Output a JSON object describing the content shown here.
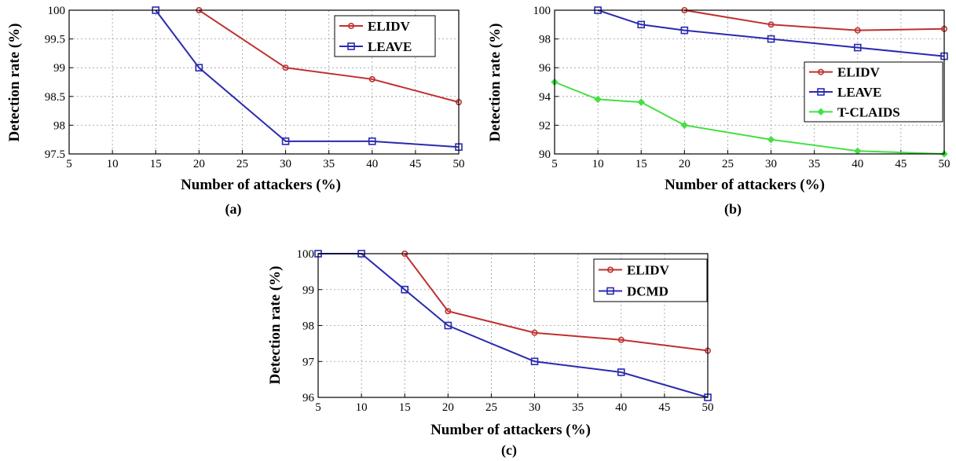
{
  "chart_data": [
    {
      "type": "line",
      "caption": "(a)",
      "xlabel": "Number of attackers (%)",
      "ylabel": "Detection rate (%)",
      "xlim": [
        5,
        50
      ],
      "ylim": [
        97.5,
        100
      ],
      "xticks": [
        "5",
        "10",
        "15",
        "20",
        "25",
        "30",
        "35",
        "40",
        "45",
        "50"
      ],
      "yticks": [
        "97.5",
        "98",
        "98.5",
        "99",
        "99.5",
        "100"
      ],
      "grid": true,
      "legend": "top-right",
      "series": [
        {
          "name": "ELIDV",
          "color": "#c03030",
          "marker": "circle",
          "x": [
            20,
            30,
            40,
            50
          ],
          "y": [
            100,
            99.0,
            98.8,
            98.4
          ]
        },
        {
          "name": "LEAVE",
          "color": "#2a2ab0",
          "marker": "square",
          "x": [
            15,
            20,
            30,
            40,
            50
          ],
          "y": [
            100,
            99.0,
            97.72,
            97.72,
            97.62
          ]
        }
      ]
    },
    {
      "type": "line",
      "caption": "(b)",
      "xlabel": "Number of attackers (%)",
      "ylabel": "Detection rate (%)",
      "xlim": [
        5,
        50
      ],
      "ylim": [
        90,
        100
      ],
      "xticks": [
        "5",
        "10",
        "15",
        "20",
        "25",
        "30",
        "35",
        "40",
        "45",
        "50"
      ],
      "yticks": [
        "90",
        "92",
        "94",
        "96",
        "98",
        "100"
      ],
      "grid": true,
      "legend": "right",
      "series": [
        {
          "name": "ELIDV",
          "color": "#c03030",
          "marker": "circle",
          "x": [
            20,
            30,
            40,
            50
          ],
          "y": [
            100,
            99.0,
            98.6,
            98.7
          ]
        },
        {
          "name": "LEAVE",
          "color": "#2a2ab0",
          "marker": "square",
          "x": [
            10,
            15,
            20,
            30,
            40,
            50
          ],
          "y": [
            100,
            99.0,
            98.6,
            98.0,
            97.4,
            96.8
          ]
        },
        {
          "name": "T-CLAIDS",
          "color": "#44e044",
          "marker": "diamond",
          "x": [
            5,
            10,
            15,
            20,
            30,
            40,
            50
          ],
          "y": [
            95.0,
            93.8,
            93.6,
            92.0,
            91.0,
            90.2,
            90.0
          ]
        }
      ]
    },
    {
      "type": "line",
      "caption": "(c)",
      "xlabel": "Number of attackers (%)",
      "ylabel": "Detection rate (%)",
      "xlim": [
        5,
        50
      ],
      "ylim": [
        96,
        100
      ],
      "xticks": [
        "5",
        "10",
        "15",
        "20",
        "25",
        "30",
        "35",
        "40",
        "45",
        "50"
      ],
      "yticks": [
        "96",
        "97",
        "98",
        "99",
        "100"
      ],
      "grid": true,
      "legend": "top-right",
      "series": [
        {
          "name": "ELIDV",
          "color": "#c03030",
          "marker": "circle",
          "x": [
            15,
            20,
            30,
            40,
            50
          ],
          "y": [
            100,
            98.4,
            97.8,
            97.6,
            97.3
          ]
        },
        {
          "name": "DCMD",
          "color": "#2a2ab0",
          "marker": "square",
          "x": [
            5,
            10,
            15,
            20,
            30,
            40,
            50
          ],
          "y": [
            100,
            100,
            99.0,
            98.0,
            97.0,
            96.7,
            96.0
          ]
        }
      ]
    }
  ]
}
